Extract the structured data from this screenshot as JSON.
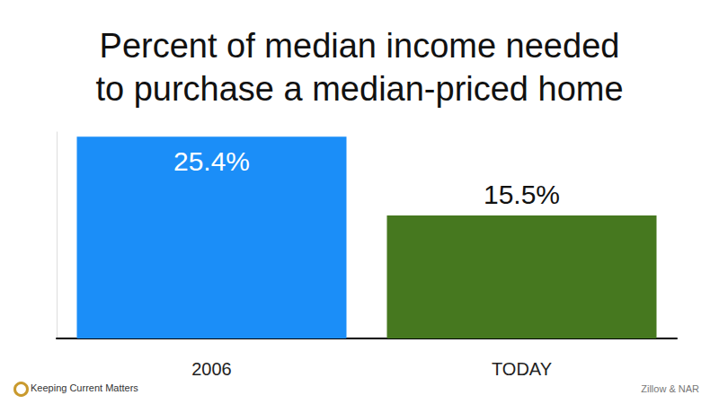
{
  "chart_data": {
    "type": "bar",
    "title": "Percent of median income needed\nto purchase a median-priced home",
    "categories": [
      "2006",
      "TODAY"
    ],
    "values": [
      25.4,
      15.5
    ],
    "value_labels": [
      "25.4%",
      "15.5%"
    ],
    "colors": [
      "#1b8ef8",
      "#46781f"
    ],
    "ylim": [
      0,
      26
    ],
    "data_labels": true,
    "tick_labels": "x",
    "grid": false,
    "source": "Zillow & NAR",
    "logo": "Keeping Current Matters"
  }
}
